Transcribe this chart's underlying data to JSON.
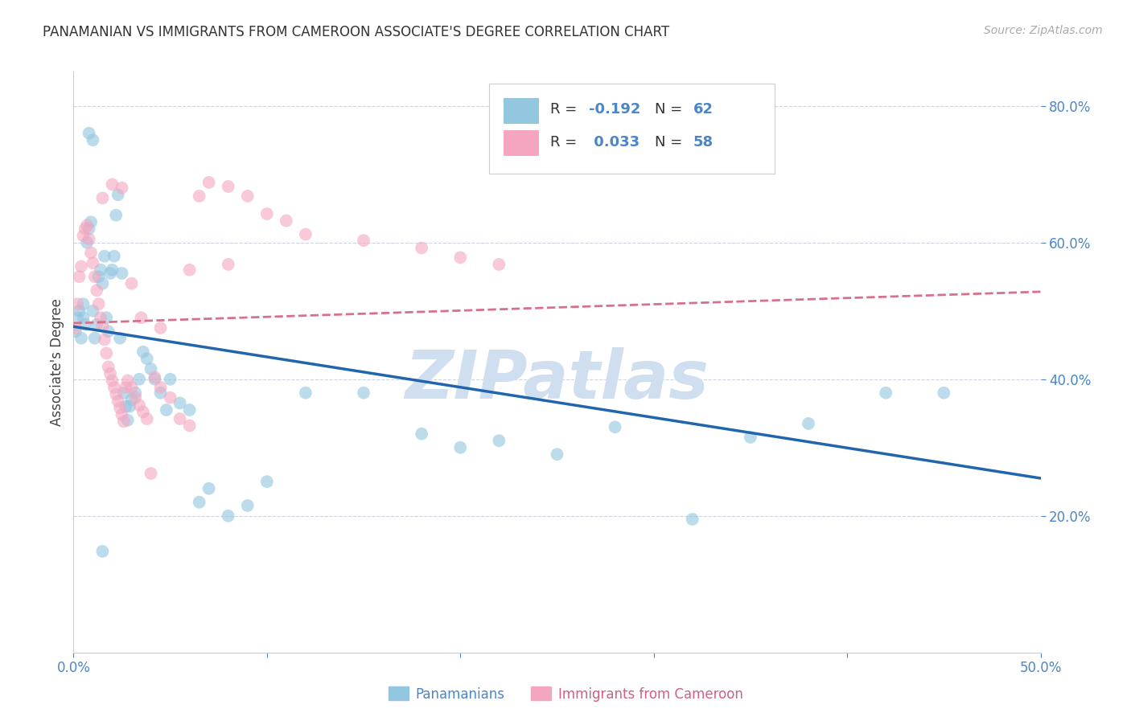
{
  "title": "PANAMANIAN VS IMMIGRANTS FROM CAMEROON ASSOCIATE'S DEGREE CORRELATION CHART",
  "source": "Source: ZipAtlas.com",
  "ylabel": "Associate's Degree",
  "xlim": [
    0.0,
    0.5
  ],
  "ylim": [
    0.0,
    0.85
  ],
  "x_ticks": [
    0.0,
    0.1,
    0.2,
    0.3,
    0.4,
    0.5
  ],
  "x_tick_labels": [
    "0.0%",
    "",
    "",
    "",
    "",
    "50.0%"
  ],
  "y_ticks": [
    0.2,
    0.4,
    0.6,
    0.8
  ],
  "y_tick_labels": [
    "20.0%",
    "40.0%",
    "60.0%",
    "80.0%"
  ],
  "blue_color": "#92c5de",
  "pink_color": "#f4a6c0",
  "blue_line_color": "#2166ac",
  "pink_line_color": "#d6708b",
  "watermark": "ZIPatlas",
  "watermark_color": "#d0dff0",
  "legend_label1": "Panamanians",
  "legend_label2": "Immigrants from Cameroon",
  "blue_x": [
    0.001,
    0.002,
    0.003,
    0.004,
    0.005,
    0.005,
    0.006,
    0.007,
    0.008,
    0.009,
    0.01,
    0.011,
    0.012,
    0.013,
    0.014,
    0.015,
    0.016,
    0.017,
    0.018,
    0.019,
    0.02,
    0.021,
    0.022,
    0.023,
    0.024,
    0.025,
    0.026,
    0.027,
    0.028,
    0.029,
    0.03,
    0.032,
    0.034,
    0.036,
    0.038,
    0.04,
    0.042,
    0.045,
    0.048,
    0.05,
    0.055,
    0.06,
    0.065,
    0.07,
    0.08,
    0.09,
    0.1,
    0.12,
    0.15,
    0.18,
    0.2,
    0.22,
    0.25,
    0.28,
    0.32,
    0.35,
    0.38,
    0.42,
    0.45,
    0.008,
    0.01,
    0.015
  ],
  "blue_y": [
    0.47,
    0.49,
    0.5,
    0.46,
    0.51,
    0.49,
    0.48,
    0.6,
    0.62,
    0.63,
    0.5,
    0.46,
    0.48,
    0.55,
    0.56,
    0.54,
    0.58,
    0.49,
    0.47,
    0.555,
    0.56,
    0.58,
    0.64,
    0.67,
    0.46,
    0.555,
    0.38,
    0.36,
    0.34,
    0.36,
    0.37,
    0.38,
    0.4,
    0.44,
    0.43,
    0.415,
    0.4,
    0.38,
    0.355,
    0.4,
    0.365,
    0.355,
    0.22,
    0.24,
    0.2,
    0.215,
    0.25,
    0.38,
    0.38,
    0.32,
    0.3,
    0.31,
    0.29,
    0.33,
    0.195,
    0.315,
    0.335,
    0.38,
    0.38,
    0.76,
    0.75,
    0.148
  ],
  "pink_x": [
    0.001,
    0.002,
    0.003,
    0.004,
    0.005,
    0.006,
    0.007,
    0.008,
    0.009,
    0.01,
    0.011,
    0.012,
    0.013,
    0.014,
    0.015,
    0.016,
    0.017,
    0.018,
    0.019,
    0.02,
    0.021,
    0.022,
    0.023,
    0.024,
    0.025,
    0.026,
    0.027,
    0.028,
    0.03,
    0.032,
    0.034,
    0.036,
    0.038,
    0.04,
    0.042,
    0.045,
    0.05,
    0.055,
    0.06,
    0.065,
    0.07,
    0.08,
    0.09,
    0.1,
    0.11,
    0.12,
    0.15,
    0.18,
    0.2,
    0.22,
    0.015,
    0.02,
    0.025,
    0.03,
    0.035,
    0.045,
    0.06,
    0.08
  ],
  "pink_y": [
    0.475,
    0.51,
    0.55,
    0.565,
    0.61,
    0.62,
    0.625,
    0.605,
    0.585,
    0.57,
    0.55,
    0.53,
    0.51,
    0.49,
    0.478,
    0.458,
    0.438,
    0.418,
    0.408,
    0.398,
    0.388,
    0.378,
    0.368,
    0.358,
    0.348,
    0.338,
    0.388,
    0.398,
    0.388,
    0.373,
    0.362,
    0.352,
    0.342,
    0.262,
    0.403,
    0.388,
    0.373,
    0.342,
    0.332,
    0.668,
    0.688,
    0.682,
    0.668,
    0.642,
    0.632,
    0.612,
    0.603,
    0.592,
    0.578,
    0.568,
    0.665,
    0.685,
    0.68,
    0.54,
    0.49,
    0.475,
    0.56,
    0.568
  ]
}
